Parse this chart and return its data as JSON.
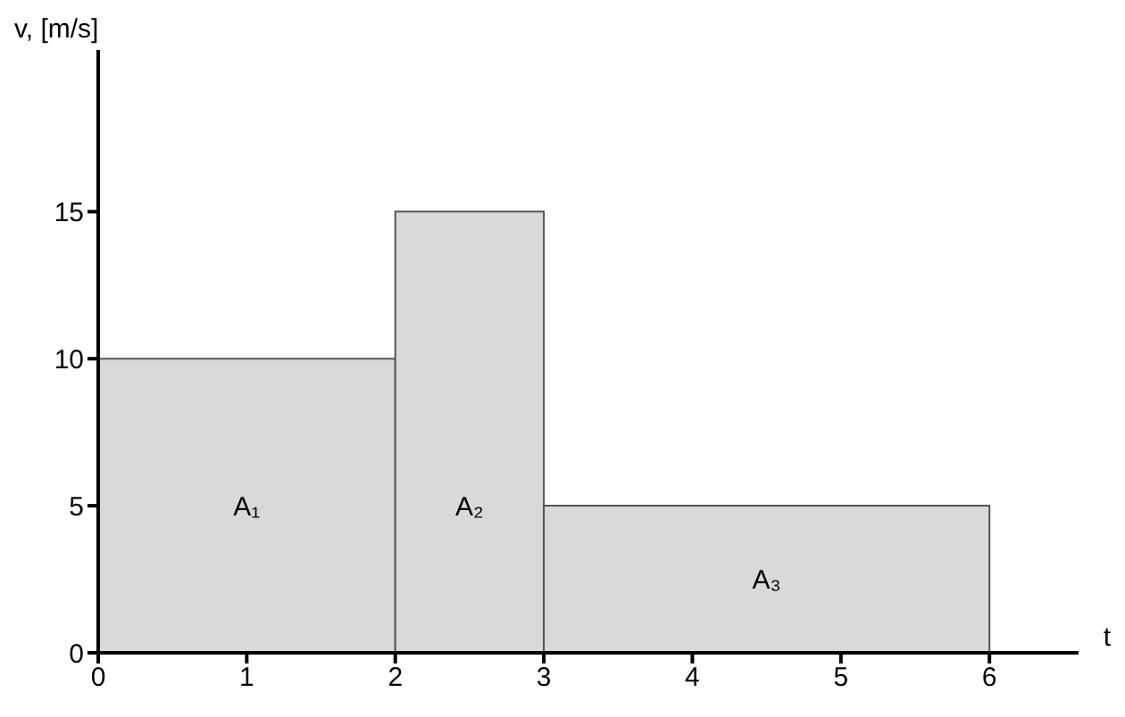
{
  "chart_data": {
    "type": "histogram",
    "xlabel": "t",
    "ylabel": "v, [m/s]",
    "bins": [
      0,
      2,
      3,
      6
    ],
    "values": [
      10,
      15,
      5
    ],
    "color": "#d9d9d9",
    "xlim": [
      0,
      6.6
    ],
    "xticks": [
      0,
      1,
      2,
      3,
      4,
      5,
      6
    ],
    "ylim": [
      0,
      20.5
    ],
    "yticks": [
      0,
      5,
      10,
      15
    ],
    "annotations": [
      "A₁",
      "A₂",
      "A₃"
    ]
  }
}
